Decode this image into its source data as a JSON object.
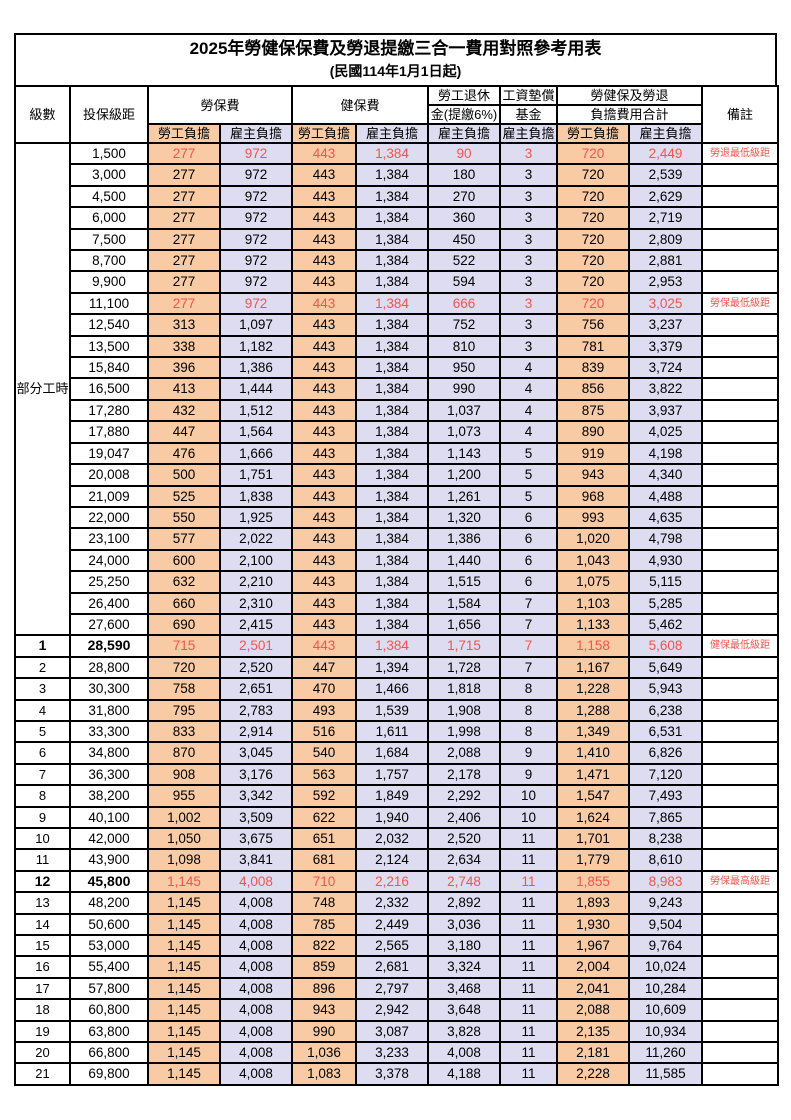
{
  "title": "2025年勞健保保費及勞退提繳三合一費用對照參考用表",
  "subtitle": "(民國114年1月1日起)",
  "colors": {
    "employee_col_bg": "#F8CBA4",
    "employer_col_bg": "#DEDCF0",
    "highlight_text": "#F4544C",
    "border": "#000000"
  },
  "header": {
    "level": "級數",
    "bracket": "投保級距",
    "labor_insurance": "勞保費",
    "health_insurance": "健保費",
    "pension_line1": "勞工退休",
    "pension_line2": "金(提繳6%)",
    "wage_fund_line1": "工資墊償",
    "wage_fund_line2": "基金",
    "total_line1": "勞健保及勞退",
    "total_line2": "負擔費用合計",
    "employee_burden": "勞工負擔",
    "employer_burden": "雇主負擔",
    "remark": "備註"
  },
  "table": {
    "part_time_label": "部分工時",
    "part_time_span": 23,
    "rows": [
      {
        "level": "",
        "bracket": "1,500",
        "li_emp": "277",
        "li_er": "972",
        "hi_emp": "443",
        "hi_er": "1,384",
        "pension": "90",
        "fund": "3",
        "tot_emp": "720",
        "tot_er": "2,449",
        "remark": "勞退最低級距",
        "red": true,
        "bold": false
      },
      {
        "level": "",
        "bracket": "3,000",
        "li_emp": "277",
        "li_er": "972",
        "hi_emp": "443",
        "hi_er": "1,384",
        "pension": "180",
        "fund": "3",
        "tot_emp": "720",
        "tot_er": "2,539",
        "remark": "",
        "red": false,
        "bold": false
      },
      {
        "level": "",
        "bracket": "4,500",
        "li_emp": "277",
        "li_er": "972",
        "hi_emp": "443",
        "hi_er": "1,384",
        "pension": "270",
        "fund": "3",
        "tot_emp": "720",
        "tot_er": "2,629",
        "remark": "",
        "red": false,
        "bold": false
      },
      {
        "level": "",
        "bracket": "6,000",
        "li_emp": "277",
        "li_er": "972",
        "hi_emp": "443",
        "hi_er": "1,384",
        "pension": "360",
        "fund": "3",
        "tot_emp": "720",
        "tot_er": "2,719",
        "remark": "",
        "red": false,
        "bold": false
      },
      {
        "level": "",
        "bracket": "7,500",
        "li_emp": "277",
        "li_er": "972",
        "hi_emp": "443",
        "hi_er": "1,384",
        "pension": "450",
        "fund": "3",
        "tot_emp": "720",
        "tot_er": "2,809",
        "remark": "",
        "red": false,
        "bold": false
      },
      {
        "level": "",
        "bracket": "8,700",
        "li_emp": "277",
        "li_er": "972",
        "hi_emp": "443",
        "hi_er": "1,384",
        "pension": "522",
        "fund": "3",
        "tot_emp": "720",
        "tot_er": "2,881",
        "remark": "",
        "red": false,
        "bold": false
      },
      {
        "level": "",
        "bracket": "9,900",
        "li_emp": "277",
        "li_er": "972",
        "hi_emp": "443",
        "hi_er": "1,384",
        "pension": "594",
        "fund": "3",
        "tot_emp": "720",
        "tot_er": "2,953",
        "remark": "",
        "red": false,
        "bold": false
      },
      {
        "level": "",
        "bracket": "11,100",
        "li_emp": "277",
        "li_er": "972",
        "hi_emp": "443",
        "hi_er": "1,384",
        "pension": "666",
        "fund": "3",
        "tot_emp": "720",
        "tot_er": "3,025",
        "remark": "勞保最低級距",
        "red": true,
        "bold": false
      },
      {
        "level": "",
        "bracket": "12,540",
        "li_emp": "313",
        "li_er": "1,097",
        "hi_emp": "443",
        "hi_er": "1,384",
        "pension": "752",
        "fund": "3",
        "tot_emp": "756",
        "tot_er": "3,237",
        "remark": "",
        "red": false,
        "bold": false
      },
      {
        "level": "",
        "bracket": "13,500",
        "li_emp": "338",
        "li_er": "1,182",
        "hi_emp": "443",
        "hi_er": "1,384",
        "pension": "810",
        "fund": "3",
        "tot_emp": "781",
        "tot_er": "3,379",
        "remark": "",
        "red": false,
        "bold": false
      },
      {
        "level": "",
        "bracket": "15,840",
        "li_emp": "396",
        "li_er": "1,386",
        "hi_emp": "443",
        "hi_er": "1,384",
        "pension": "950",
        "fund": "4",
        "tot_emp": "839",
        "tot_er": "3,724",
        "remark": "",
        "red": false,
        "bold": false
      },
      {
        "level": "",
        "bracket": "16,500",
        "li_emp": "413",
        "li_er": "1,444",
        "hi_emp": "443",
        "hi_er": "1,384",
        "pension": "990",
        "fund": "4",
        "tot_emp": "856",
        "tot_er": "3,822",
        "remark": "",
        "red": false,
        "bold": false
      },
      {
        "level": "",
        "bracket": "17,280",
        "li_emp": "432",
        "li_er": "1,512",
        "hi_emp": "443",
        "hi_er": "1,384",
        "pension": "1,037",
        "fund": "4",
        "tot_emp": "875",
        "tot_er": "3,937",
        "remark": "",
        "red": false,
        "bold": false
      },
      {
        "level": "",
        "bracket": "17,880",
        "li_emp": "447",
        "li_er": "1,564",
        "hi_emp": "443",
        "hi_er": "1,384",
        "pension": "1,073",
        "fund": "4",
        "tot_emp": "890",
        "tot_er": "4,025",
        "remark": "",
        "red": false,
        "bold": false
      },
      {
        "level": "",
        "bracket": "19,047",
        "li_emp": "476",
        "li_er": "1,666",
        "hi_emp": "443",
        "hi_er": "1,384",
        "pension": "1,143",
        "fund": "5",
        "tot_emp": "919",
        "tot_er": "4,198",
        "remark": "",
        "red": false,
        "bold": false
      },
      {
        "level": "",
        "bracket": "20,008",
        "li_emp": "500",
        "li_er": "1,751",
        "hi_emp": "443",
        "hi_er": "1,384",
        "pension": "1,200",
        "fund": "5",
        "tot_emp": "943",
        "tot_er": "4,340",
        "remark": "",
        "red": false,
        "bold": false
      },
      {
        "level": "",
        "bracket": "21,009",
        "li_emp": "525",
        "li_er": "1,838",
        "hi_emp": "443",
        "hi_er": "1,384",
        "pension": "1,261",
        "fund": "5",
        "tot_emp": "968",
        "tot_er": "4,488",
        "remark": "",
        "red": false,
        "bold": false
      },
      {
        "level": "",
        "bracket": "22,000",
        "li_emp": "550",
        "li_er": "1,925",
        "hi_emp": "443",
        "hi_er": "1,384",
        "pension": "1,320",
        "fund": "6",
        "tot_emp": "993",
        "tot_er": "4,635",
        "remark": "",
        "red": false,
        "bold": false
      },
      {
        "level": "",
        "bracket": "23,100",
        "li_emp": "577",
        "li_er": "2,022",
        "hi_emp": "443",
        "hi_er": "1,384",
        "pension": "1,386",
        "fund": "6",
        "tot_emp": "1,020",
        "tot_er": "4,798",
        "remark": "",
        "red": false,
        "bold": false
      },
      {
        "level": "",
        "bracket": "24,000",
        "li_emp": "600",
        "li_er": "2,100",
        "hi_emp": "443",
        "hi_er": "1,384",
        "pension": "1,440",
        "fund": "6",
        "tot_emp": "1,043",
        "tot_er": "4,930",
        "remark": "",
        "red": false,
        "bold": false
      },
      {
        "level": "",
        "bracket": "25,250",
        "li_emp": "632",
        "li_er": "2,210",
        "hi_emp": "443",
        "hi_er": "1,384",
        "pension": "1,515",
        "fund": "6",
        "tot_emp": "1,075",
        "tot_er": "5,115",
        "remark": "",
        "red": false,
        "bold": false
      },
      {
        "level": "",
        "bracket": "26,400",
        "li_emp": "660",
        "li_er": "2,310",
        "hi_emp": "443",
        "hi_er": "1,384",
        "pension": "1,584",
        "fund": "7",
        "tot_emp": "1,103",
        "tot_er": "5,285",
        "remark": "",
        "red": false,
        "bold": false
      },
      {
        "level": "",
        "bracket": "27,600",
        "li_emp": "690",
        "li_er": "2,415",
        "hi_emp": "443",
        "hi_er": "1,384",
        "pension": "1,656",
        "fund": "7",
        "tot_emp": "1,133",
        "tot_er": "5,462",
        "remark": "",
        "red": false,
        "bold": false
      },
      {
        "level": "1",
        "bracket": "28,590",
        "li_emp": "715",
        "li_er": "2,501",
        "hi_emp": "443",
        "hi_er": "1,384",
        "pension": "1,715",
        "fund": "7",
        "tot_emp": "1,158",
        "tot_er": "5,608",
        "remark": "健保最低級距",
        "red": true,
        "bold": true
      },
      {
        "level": "2",
        "bracket": "28,800",
        "li_emp": "720",
        "li_er": "2,520",
        "hi_emp": "447",
        "hi_er": "1,394",
        "pension": "1,728",
        "fund": "7",
        "tot_emp": "1,167",
        "tot_er": "5,649",
        "remark": "",
        "red": false,
        "bold": false
      },
      {
        "level": "3",
        "bracket": "30,300",
        "li_emp": "758",
        "li_er": "2,651",
        "hi_emp": "470",
        "hi_er": "1,466",
        "pension": "1,818",
        "fund": "8",
        "tot_emp": "1,228",
        "tot_er": "5,943",
        "remark": "",
        "red": false,
        "bold": false
      },
      {
        "level": "4",
        "bracket": "31,800",
        "li_emp": "795",
        "li_er": "2,783",
        "hi_emp": "493",
        "hi_er": "1,539",
        "pension": "1,908",
        "fund": "8",
        "tot_emp": "1,288",
        "tot_er": "6,238",
        "remark": "",
        "red": false,
        "bold": false
      },
      {
        "level": "5",
        "bracket": "33,300",
        "li_emp": "833",
        "li_er": "2,914",
        "hi_emp": "516",
        "hi_er": "1,611",
        "pension": "1,998",
        "fund": "8",
        "tot_emp": "1,349",
        "tot_er": "6,531",
        "remark": "",
        "red": false,
        "bold": false
      },
      {
        "level": "6",
        "bracket": "34,800",
        "li_emp": "870",
        "li_er": "3,045",
        "hi_emp": "540",
        "hi_er": "1,684",
        "pension": "2,088",
        "fund": "9",
        "tot_emp": "1,410",
        "tot_er": "6,826",
        "remark": "",
        "red": false,
        "bold": false
      },
      {
        "level": "7",
        "bracket": "36,300",
        "li_emp": "908",
        "li_er": "3,176",
        "hi_emp": "563",
        "hi_er": "1,757",
        "pension": "2,178",
        "fund": "9",
        "tot_emp": "1,471",
        "tot_er": "7,120",
        "remark": "",
        "red": false,
        "bold": false
      },
      {
        "level": "8",
        "bracket": "38,200",
        "li_emp": "955",
        "li_er": "3,342",
        "hi_emp": "592",
        "hi_er": "1,849",
        "pension": "2,292",
        "fund": "10",
        "tot_emp": "1,547",
        "tot_er": "7,493",
        "remark": "",
        "red": false,
        "bold": false
      },
      {
        "level": "9",
        "bracket": "40,100",
        "li_emp": "1,002",
        "li_er": "3,509",
        "hi_emp": "622",
        "hi_er": "1,940",
        "pension": "2,406",
        "fund": "10",
        "tot_emp": "1,624",
        "tot_er": "7,865",
        "remark": "",
        "red": false,
        "bold": false
      },
      {
        "level": "10",
        "bracket": "42,000",
        "li_emp": "1,050",
        "li_er": "3,675",
        "hi_emp": "651",
        "hi_er": "2,032",
        "pension": "2,520",
        "fund": "11",
        "tot_emp": "1,701",
        "tot_er": "8,238",
        "remark": "",
        "red": false,
        "bold": false
      },
      {
        "level": "11",
        "bracket": "43,900",
        "li_emp": "1,098",
        "li_er": "3,841",
        "hi_emp": "681",
        "hi_er": "2,124",
        "pension": "2,634",
        "fund": "11",
        "tot_emp": "1,779",
        "tot_er": "8,610",
        "remark": "",
        "red": false,
        "bold": false
      },
      {
        "level": "12",
        "bracket": "45,800",
        "li_emp": "1,145",
        "li_er": "4,008",
        "hi_emp": "710",
        "hi_er": "2,216",
        "pension": "2,748",
        "fund": "11",
        "tot_emp": "1,855",
        "tot_er": "8,983",
        "remark": "勞保最高級距",
        "red": true,
        "bold": true
      },
      {
        "level": "13",
        "bracket": "48,200",
        "li_emp": "1,145",
        "li_er": "4,008",
        "hi_emp": "748",
        "hi_er": "2,332",
        "pension": "2,892",
        "fund": "11",
        "tot_emp": "1,893",
        "tot_er": "9,243",
        "remark": "",
        "red": false,
        "bold": false
      },
      {
        "level": "14",
        "bracket": "50,600",
        "li_emp": "1,145",
        "li_er": "4,008",
        "hi_emp": "785",
        "hi_er": "2,449",
        "pension": "3,036",
        "fund": "11",
        "tot_emp": "1,930",
        "tot_er": "9,504",
        "remark": "",
        "red": false,
        "bold": false
      },
      {
        "level": "15",
        "bracket": "53,000",
        "li_emp": "1,145",
        "li_er": "4,008",
        "hi_emp": "822",
        "hi_er": "2,565",
        "pension": "3,180",
        "fund": "11",
        "tot_emp": "1,967",
        "tot_er": "9,764",
        "remark": "",
        "red": false,
        "bold": false
      },
      {
        "level": "16",
        "bracket": "55,400",
        "li_emp": "1,145",
        "li_er": "4,008",
        "hi_emp": "859",
        "hi_er": "2,681",
        "pension": "3,324",
        "fund": "11",
        "tot_emp": "2,004",
        "tot_er": "10,024",
        "remark": "",
        "red": false,
        "bold": false
      },
      {
        "level": "17",
        "bracket": "57,800",
        "li_emp": "1,145",
        "li_er": "4,008",
        "hi_emp": "896",
        "hi_er": "2,797",
        "pension": "3,468",
        "fund": "11",
        "tot_emp": "2,041",
        "tot_er": "10,284",
        "remark": "",
        "red": false,
        "bold": false
      },
      {
        "level": "18",
        "bracket": "60,800",
        "li_emp": "1,145",
        "li_er": "4,008",
        "hi_emp": "943",
        "hi_er": "2,942",
        "pension": "3,648",
        "fund": "11",
        "tot_emp": "2,088",
        "tot_er": "10,609",
        "remark": "",
        "red": false,
        "bold": false
      },
      {
        "level": "19",
        "bracket": "63,800",
        "li_emp": "1,145",
        "li_er": "4,008",
        "hi_emp": "990",
        "hi_er": "3,087",
        "pension": "3,828",
        "fund": "11",
        "tot_emp": "2,135",
        "tot_er": "10,934",
        "remark": "",
        "red": false,
        "bold": false
      },
      {
        "level": "20",
        "bracket": "66,800",
        "li_emp": "1,145",
        "li_er": "4,008",
        "hi_emp": "1,036",
        "hi_er": "3,233",
        "pension": "4,008",
        "fund": "11",
        "tot_emp": "2,181",
        "tot_er": "11,260",
        "remark": "",
        "red": false,
        "bold": false
      },
      {
        "level": "21",
        "bracket": "69,800",
        "li_emp": "1,145",
        "li_er": "4,008",
        "hi_emp": "1,083",
        "hi_er": "3,378",
        "pension": "4,188",
        "fund": "11",
        "tot_emp": "2,228",
        "tot_er": "11,585",
        "remark": "",
        "red": false,
        "bold": false
      }
    ]
  }
}
